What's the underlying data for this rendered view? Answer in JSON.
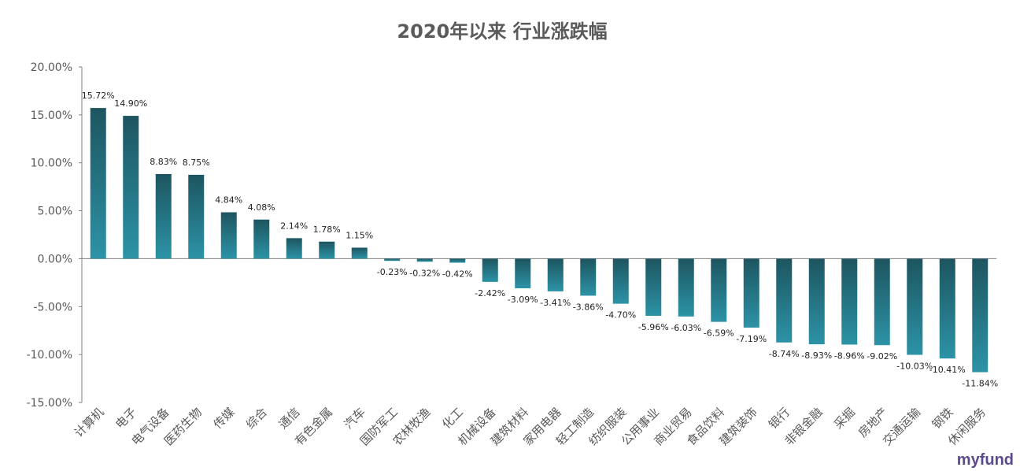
{
  "chart_data": {
    "type": "bar",
    "title": "2020年以来 行业涨跌幅",
    "xlabel": "",
    "ylabel": "",
    "ylim": [
      -15,
      20
    ],
    "yticks": [
      "20.00%",
      "15.00%",
      "10.00%",
      "5.00%",
      "0.00%",
      "-5.00%",
      "-10.00%",
      "-15.00%"
    ],
    "categories": [
      "计算机",
      "电子",
      "电气设备",
      "医药生物",
      "传媒",
      "综合",
      "通信",
      "有色金属",
      "汽车",
      "国防军工",
      "农林牧渔",
      "化工",
      "机械设备",
      "建筑材料",
      "家用电器",
      "轻工制造",
      "纺织服装",
      "公用事业",
      "商业贸易",
      "食品饮料",
      "建筑装饰",
      "银行",
      "非银金融",
      "采掘",
      "房地产",
      "交通运输",
      "钢铁",
      "休闲服务"
    ],
    "values": [
      15.72,
      14.9,
      8.83,
      8.75,
      4.84,
      4.08,
      2.14,
      1.78,
      1.15,
      -0.23,
      -0.32,
      -0.42,
      -2.42,
      -3.09,
      -3.41,
      -3.86,
      -4.7,
      -5.96,
      -6.03,
      -6.59,
      -7.19,
      -8.74,
      -8.93,
      -8.96,
      -9.02,
      -10.03,
      -10.41,
      -11.84
    ],
    "data_labels": [
      "15.72%",
      "14.90%",
      "8.83%",
      "8.75%",
      "4.84%",
      "4.08%",
      "2.14%",
      "1.78%",
      "1.15%",
      "-0.23%",
      "-0.32%",
      "-0.42%",
      "-2.42%",
      "-3.09%",
      "-3.41%",
      "-3.86%",
      "-4.70%",
      "-5.96%",
      "-6.03%",
      "-6.59%",
      "-7.19%",
      "-8.74%",
      "-8.93%",
      "-8.96%",
      "-9.02%",
      "-10.03%",
      "-10.41%",
      "-11.84%"
    ],
    "grid": false,
    "colors": {
      "bar_top": "#1d5560",
      "bar_bottom": "#2c93a6",
      "axis": "#7f7f7f",
      "text": "#595959"
    }
  },
  "watermark": "myfund"
}
